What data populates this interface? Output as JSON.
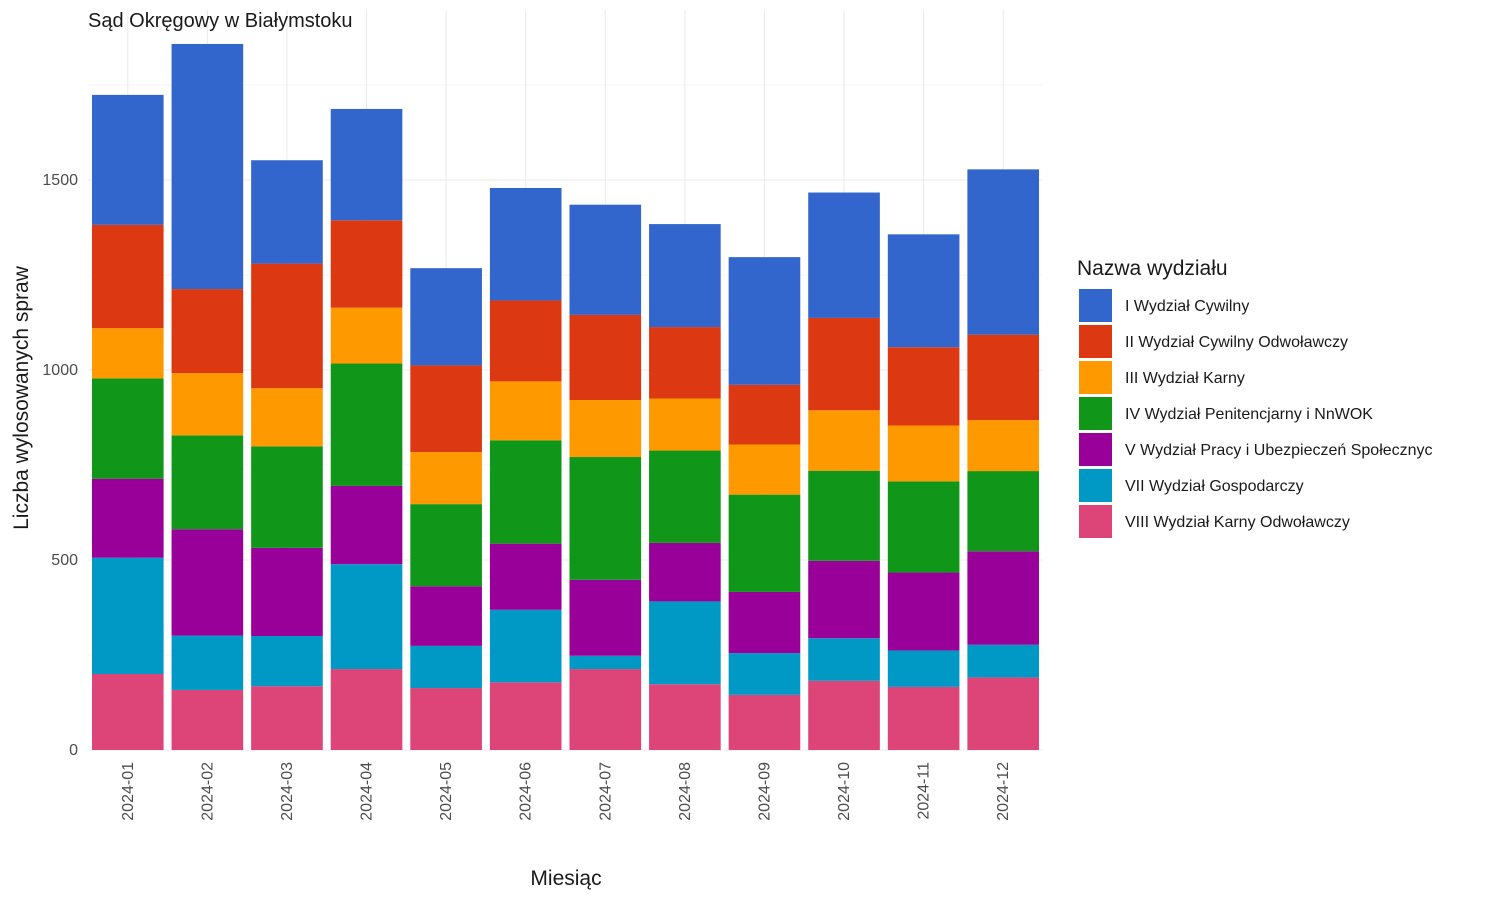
{
  "chart_data": {
    "type": "bar",
    "stacked": true,
    "title": "Sąd Okręgowy w Białymstoku",
    "xlabel": "Miesiąc",
    "ylabel": "Liczba wylosowanych spraw",
    "ylim": [
      0,
      1860
    ],
    "yticks": [
      0,
      500,
      1000,
      1500
    ],
    "grid": true,
    "legend_position": "right",
    "legend_title": "Nazwa wydziału",
    "categories": [
      "2024-01",
      "2024-02",
      "2024-03",
      "2024-04",
      "2024-05",
      "2024-06",
      "2024-07",
      "2024-08",
      "2024-09",
      "2024-10",
      "2024-11",
      "2024-12"
    ],
    "series": [
      {
        "name": "I Wydział Cywilny",
        "color": "#3366CC",
        "values": [
          342,
          645,
          272,
          293,
          256,
          296,
          290,
          271,
          336,
          330,
          297,
          435
        ]
      },
      {
        "name": "II Wydział Cywilny Odwoławczy",
        "color": "#DC3912",
        "values": [
          272,
          221,
          328,
          230,
          228,
          213,
          224,
          188,
          157,
          243,
          206,
          225
        ]
      },
      {
        "name": "III Wydział Karny",
        "color": "#FF9900",
        "values": [
          132,
          164,
          153,
          147,
          137,
          155,
          150,
          137,
          132,
          159,
          147,
          134
        ]
      },
      {
        "name": "IV Wydział Penitencjarny i NnWOK",
        "color": "#109618",
        "values": [
          264,
          247,
          267,
          322,
          216,
          272,
          323,
          243,
          256,
          237,
          240,
          211
        ]
      },
      {
        "name": "V Wydział Pracy i Ubezpieczeń Społecznyc",
        "color": "#990099",
        "values": [
          208,
          280,
          232,
          206,
          157,
          174,
          200,
          154,
          161,
          204,
          205,
          246
        ]
      },
      {
        "name": "VII Wydział Gospodarczy",
        "color": "#0099C6",
        "values": [
          306,
          143,
          132,
          276,
          111,
          191,
          35,
          218,
          110,
          112,
          96,
          86
        ]
      },
      {
        "name": "VIII Wydział Karny Odwoławczy",
        "color": "#DD4477",
        "values": [
          200,
          158,
          168,
          213,
          163,
          178,
          213,
          173,
          145,
          182,
          166,
          191
        ]
      }
    ]
  }
}
